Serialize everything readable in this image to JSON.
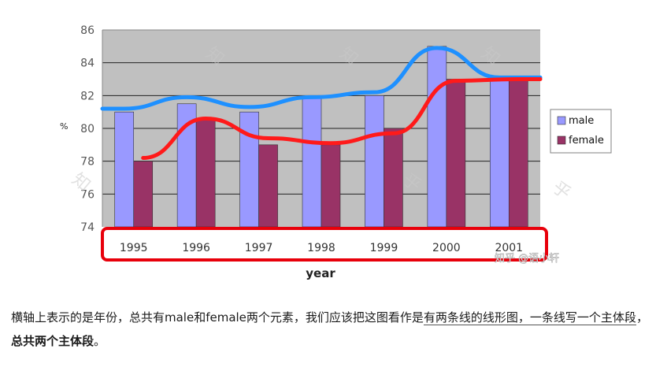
{
  "chart_data": {
    "type": "bar",
    "categories": [
      "1995",
      "1996",
      "1997",
      "1998",
      "1999",
      "2000",
      "2001"
    ],
    "series": [
      {
        "name": "male",
        "values": [
          81,
          81.5,
          81,
          82,
          82,
          85,
          83
        ],
        "color": "#9999ff"
      },
      {
        "name": "female",
        "values": [
          78,
          80.5,
          79,
          79,
          80,
          83,
          83
        ],
        "color": "#993366"
      }
    ],
    "xlabel": "year",
    "ylabel": "%",
    "ylim": [
      74,
      86
    ],
    "yticks": [
      "86",
      "84",
      "82",
      "80",
      "78",
      "76",
      "74"
    ],
    "grid": true,
    "legend": "right",
    "overlay_lines": [
      {
        "for": "male",
        "color": "#1e90ff",
        "values": [
          81.2,
          81.9,
          81.3,
          81.9,
          82.2,
          84.9,
          83.1
        ]
      },
      {
        "for": "female",
        "color": "#ff1a1a",
        "values": [
          78.2,
          80.6,
          79.4,
          79.1,
          79.7,
          82.9,
          83.0
        ]
      }
    ],
    "highlight_box_color": "#e8000b"
  },
  "watermark": {
    "glyph_a": "知",
    "glyph_b": "乎",
    "badge": "知乎 @语小轩"
  },
  "caption": {
    "part1": "横轴上表示的是年份，总共有male和female两个元素，我们应该把这图看作是",
    "part2_underlined": "有两条线的线形图，一条线写一个主体段",
    "part3": "，",
    "part4_bold": "总共两个主体段",
    "part5": "。"
  }
}
